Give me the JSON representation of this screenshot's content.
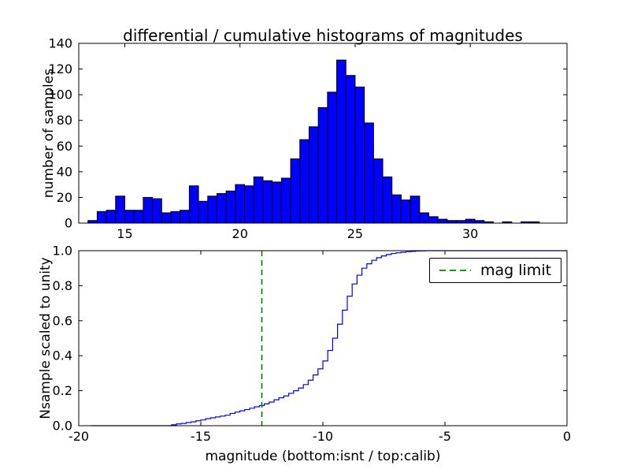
{
  "figure": {
    "background": "#ffffff"
  },
  "chart_data": [
    {
      "type": "bar",
      "panel": "top",
      "title": "differential / cumulative histograms of magnitudes",
      "ylabel": "number of samples",
      "xlim": [
        13.0,
        34.2
      ],
      "ylim": [
        0,
        140
      ],
      "xticks": [
        15,
        20,
        25,
        30
      ],
      "xtick_labels": [
        "15",
        "20",
        "25",
        "30"
      ],
      "yticks": [
        0,
        20,
        40,
        60,
        80,
        100,
        120,
        140
      ],
      "ytick_labels": [
        "0",
        "20",
        "40",
        "60",
        "80",
        "100",
        "120",
        "140"
      ],
      "grid": false,
      "bar_color": "#0000ff",
      "bar_edge_color": "#000000",
      "bin_start": 13.4,
      "bin_width": 0.4,
      "values": [
        2,
        9,
        10,
        21,
        10,
        10,
        20,
        19,
        8,
        9,
        10,
        29,
        17,
        21,
        23,
        25,
        30,
        29,
        36,
        33,
        32,
        35,
        50,
        65,
        75,
        90,
        102,
        127,
        115,
        106,
        78,
        50,
        36,
        22,
        18,
        21,
        8,
        5,
        3,
        2,
        2,
        3,
        2,
        1,
        0,
        1,
        0,
        1,
        1
      ]
    },
    {
      "type": "line",
      "panel": "bottom",
      "ylabel": "Nsample scaled to unity",
      "xlabel": "magnitude (bottom:isnt / top:calib)",
      "xlim": [
        -20,
        0
      ],
      "ylim": [
        0.0,
        1.0
      ],
      "xticks": [
        -20,
        -15,
        -10,
        -5,
        0
      ],
      "xtick_labels": [
        "-20",
        "-15",
        "-10",
        "-5",
        "0"
      ],
      "yticks": [
        0.0,
        0.2,
        0.4,
        0.6,
        0.8,
        1.0
      ],
      "ytick_labels": [
        "0.0",
        "0.2",
        "0.4",
        "0.6",
        "0.8",
        "1.0"
      ],
      "grid": false,
      "line_color": "#0000ff",
      "step": true,
      "points": [
        [
          -19.5,
          0.0
        ],
        [
          -16.4,
          0.0
        ],
        [
          -16.2,
          0.005
        ],
        [
          -16.0,
          0.01
        ],
        [
          -15.8,
          0.013
        ],
        [
          -15.6,
          0.018
        ],
        [
          -15.4,
          0.022
        ],
        [
          -15.2,
          0.028
        ],
        [
          -15.0,
          0.033
        ],
        [
          -14.8,
          0.04
        ],
        [
          -14.6,
          0.045
        ],
        [
          -14.4,
          0.05
        ],
        [
          -14.2,
          0.055
        ],
        [
          -14.0,
          0.06
        ],
        [
          -13.8,
          0.07
        ],
        [
          -13.6,
          0.078
        ],
        [
          -13.4,
          0.085
        ],
        [
          -13.2,
          0.092
        ],
        [
          -13.0,
          0.1
        ],
        [
          -12.8,
          0.108
        ],
        [
          -12.6,
          0.115
        ],
        [
          -12.4,
          0.125
        ],
        [
          -12.2,
          0.135
        ],
        [
          -12.0,
          0.148
        ],
        [
          -11.8,
          0.16
        ],
        [
          -11.6,
          0.17
        ],
        [
          -11.4,
          0.185
        ],
        [
          -11.2,
          0.2
        ],
        [
          -11.0,
          0.215
        ],
        [
          -10.8,
          0.235
        ],
        [
          -10.6,
          0.26
        ],
        [
          -10.4,
          0.29
        ],
        [
          -10.2,
          0.325
        ],
        [
          -10.0,
          0.37
        ],
        [
          -9.8,
          0.43
        ],
        [
          -9.6,
          0.5
        ],
        [
          -9.4,
          0.58
        ],
        [
          -9.2,
          0.66
        ],
        [
          -9.0,
          0.74
        ],
        [
          -8.8,
          0.81
        ],
        [
          -8.6,
          0.86
        ],
        [
          -8.4,
          0.9
        ],
        [
          -8.2,
          0.925
        ],
        [
          -8.0,
          0.945
        ],
        [
          -7.8,
          0.96
        ],
        [
          -7.6,
          0.97
        ],
        [
          -7.4,
          0.978
        ],
        [
          -7.2,
          0.984
        ],
        [
          -7.0,
          0.988
        ],
        [
          -6.8,
          0.991
        ],
        [
          -6.6,
          0.994
        ],
        [
          -6.4,
          0.996
        ],
        [
          -6.2,
          0.998
        ],
        [
          -6.0,
          0.999
        ],
        [
          -5.8,
          1.0
        ],
        [
          0,
          1.0
        ]
      ],
      "mag_limit": {
        "x": -12.5,
        "color": "#008000",
        "style": "dashed"
      },
      "legend": {
        "label": "mag limit",
        "position": "upper right"
      }
    }
  ]
}
